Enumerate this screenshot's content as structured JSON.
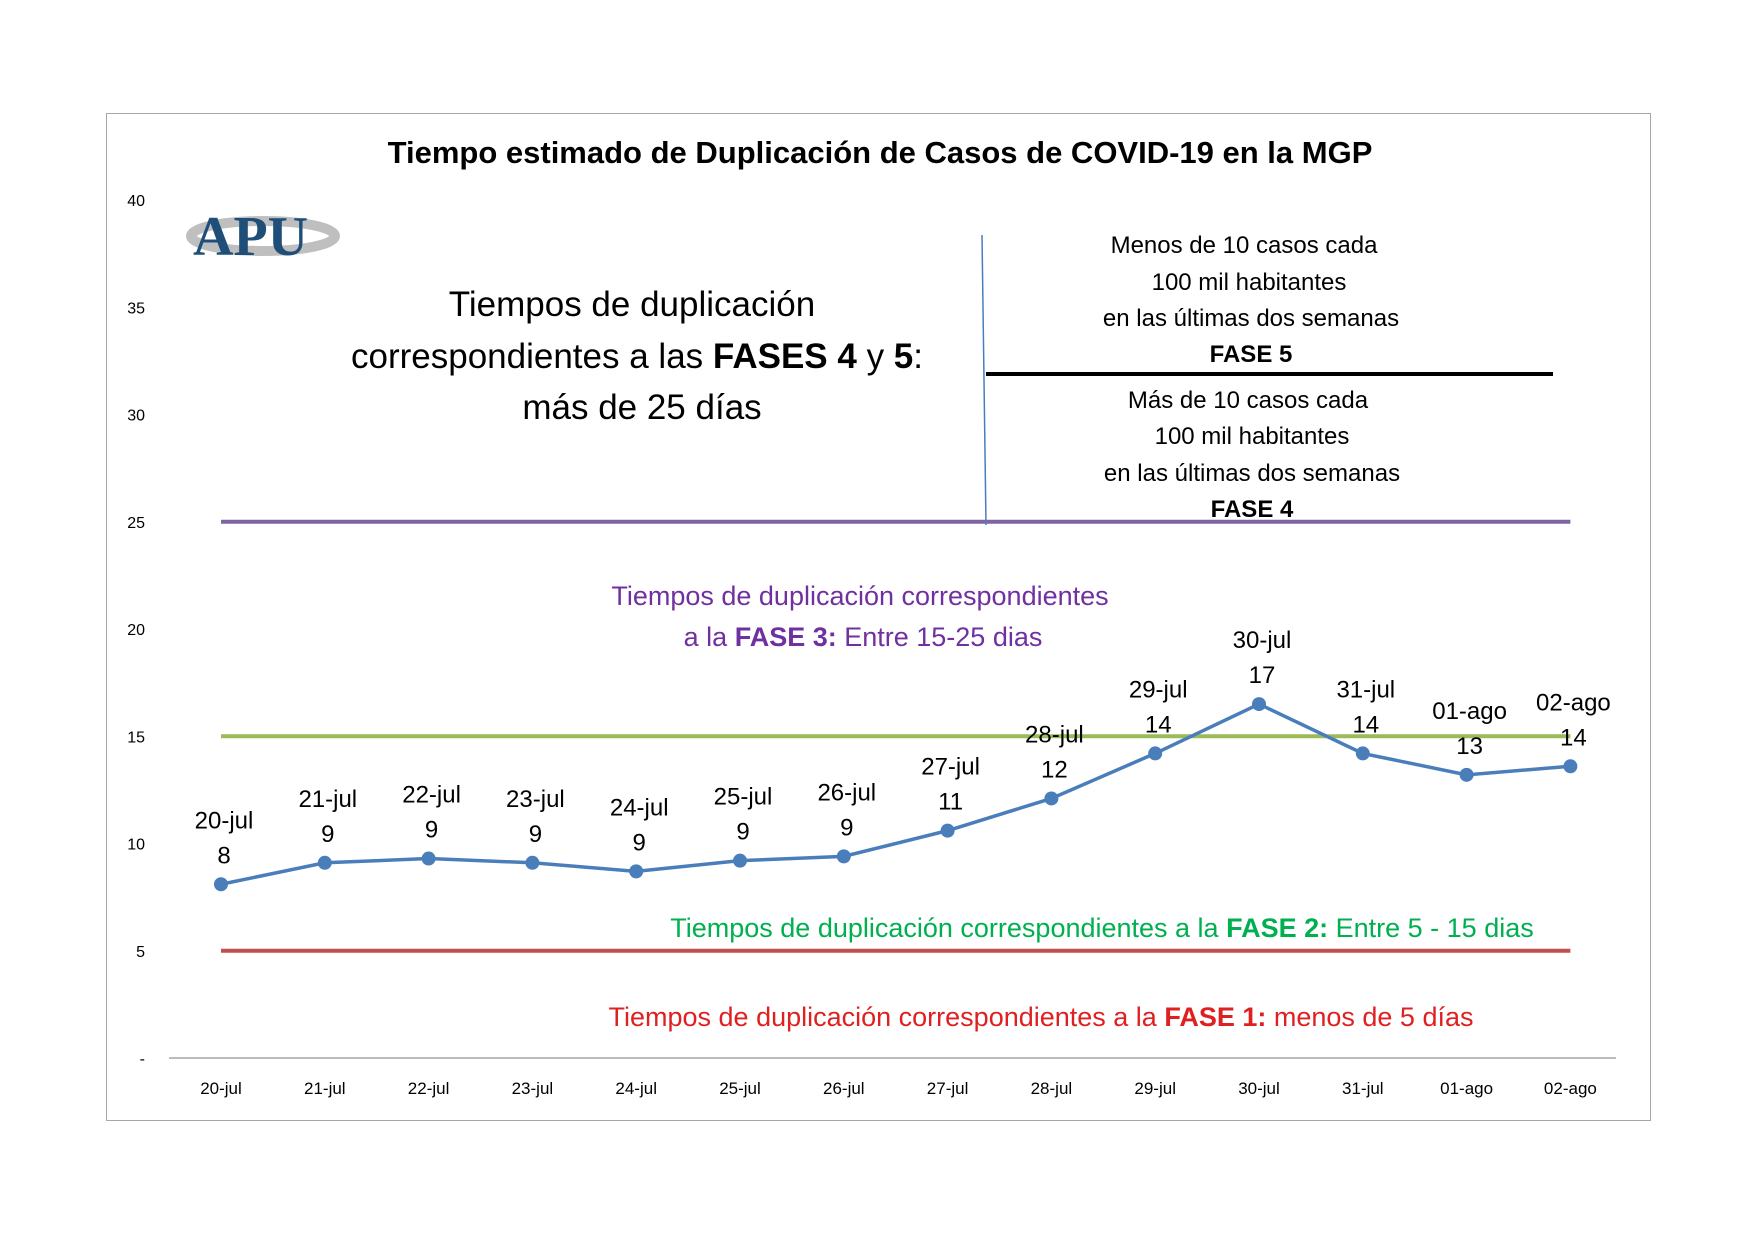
{
  "chart_data": {
    "type": "line",
    "title": "Tiempo estimado  de Duplicación de Casos de COVID-19 en la MGP",
    "xlabel": "",
    "ylabel": "",
    "ylim": [
      0,
      40
    ],
    "yticks": [
      {
        "value": 0,
        "label": "-"
      },
      {
        "value": 5,
        "label": "5"
      },
      {
        "value": 10,
        "label": "10"
      },
      {
        "value": 15,
        "label": "15"
      },
      {
        "value": 20,
        "label": "20"
      },
      {
        "value": 25,
        "label": "25"
      },
      {
        "value": 30,
        "label": "30"
      },
      {
        "value": 35,
        "label": "35"
      },
      {
        "value": 40,
        "label": "40"
      }
    ],
    "categories": [
      "20-jul",
      "21-jul",
      "22-jul",
      "23-jul",
      "24-jul",
      "25-jul",
      "26-jul",
      "27-jul",
      "28-jul",
      "29-jul",
      "30-jul",
      "31-jul",
      "01-ago",
      "02-ago"
    ],
    "series": [
      {
        "color": "#4a7ebb",
        "values": [
          8.1,
          9.1,
          9.3,
          9.1,
          8.7,
          9.2,
          9.4,
          10.6,
          12.1,
          14.2,
          16.5,
          14.2,
          13.2,
          13.6
        ],
        "data_labels": [
          "8",
          "9",
          "9",
          "9",
          "9",
          "9",
          "9",
          "11",
          "12",
          "14",
          "17",
          "14",
          "13",
          "14"
        ]
      }
    ],
    "threshold_lines": [
      {
        "value": 5,
        "color": "#c0504d"
      },
      {
        "value": 15,
        "color": "#9bbb59"
      },
      {
        "value": 25,
        "color": "#8064a2"
      }
    ],
    "grid": false,
    "legend": "none"
  },
  "logo": {
    "text": "APU"
  },
  "annotations": {
    "fase45": {
      "line1": "Tiempos de duplicación",
      "line2_a": "correspondientes a las ",
      "line2_b": "FASES 4",
      "line2_c": " y ",
      "line2_d": "5",
      "line2_e": ":",
      "line3": "más de 25 días"
    },
    "fase5": {
      "line1": "Menos de 10 casos  cada",
      "line2": "100 mil habitantes",
      "line3": "en las últimas dos semanas",
      "label": "FASE 5"
    },
    "fase4": {
      "line1": "Más de 10 casos  cada",
      "line2": "100 mil habitantes",
      "line3": "en las últimas dos semanas",
      "label": "FASE 4"
    },
    "fase3": {
      "line1": "Tiempos de duplicación correspondientes",
      "line2_a": "a la ",
      "line2_b": "FASE 3:",
      "line2_c": " Entre 15-25 dias",
      "color": "#7030a0"
    },
    "fase2": {
      "text_a": "Tiempos de duplicación correspondientes a la ",
      "text_b": "FASE 2:",
      "text_c": " Entre 5 - 15 dias",
      "color": "#00b050"
    },
    "fase1": {
      "text_a": "Tiempos de duplicación correspondientes a la ",
      "text_b": "FASE 1:",
      "text_c": " menos de 5 días",
      "color": "#e02020"
    }
  }
}
